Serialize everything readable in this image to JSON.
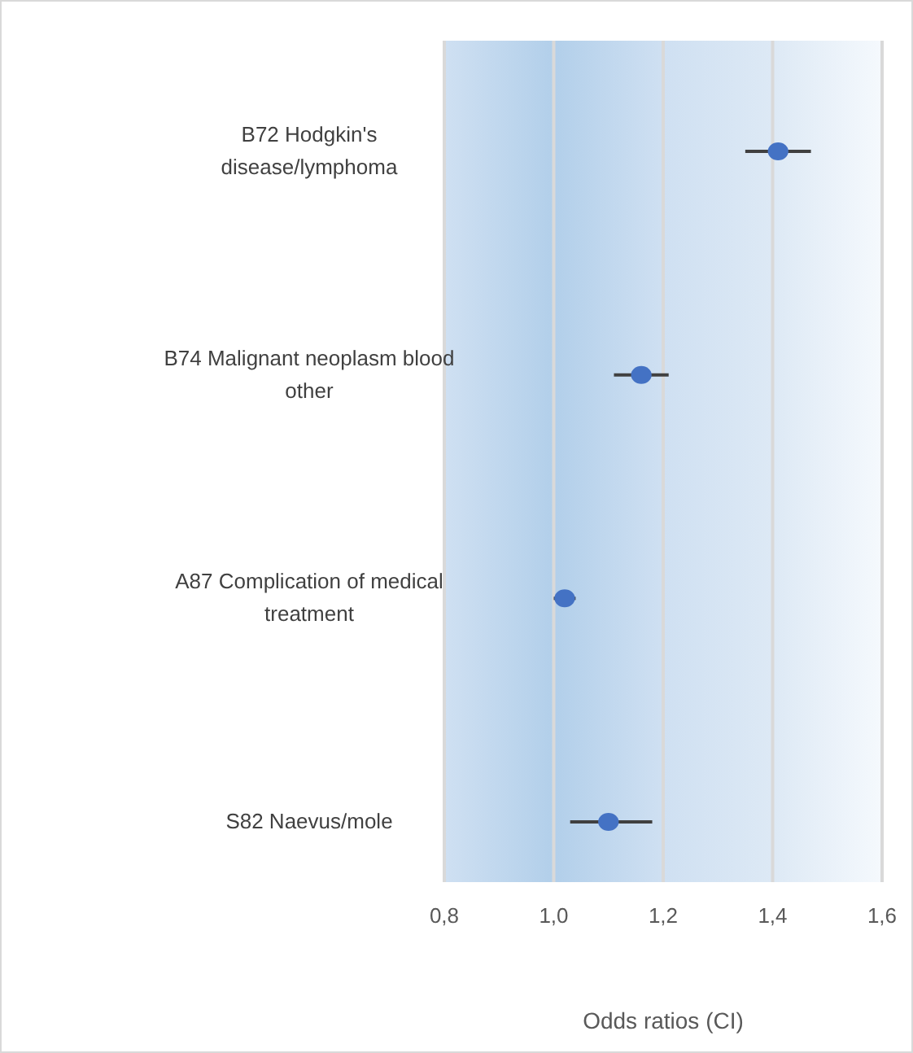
{
  "chart_data": {
    "type": "scatter",
    "orientation": "horizontal",
    "xlabel": "Odds ratios (CI)",
    "categories": [
      "B72 Hodgkin's disease/lymphoma",
      "B74 Malignant neoplasm blood other",
      "A87 Complication of medical treatment",
      "S82 Naevus/mole"
    ],
    "values": [
      1.41,
      1.16,
      1.02,
      1.1
    ],
    "errors": [
      [
        1.35,
        1.47
      ],
      [
        1.11,
        1.21
      ],
      [
        1.0,
        1.04
      ],
      [
        1.03,
        1.18
      ]
    ],
    "color": "#4472c4",
    "marker": "circle",
    "xlim": [
      0.8,
      1.6
    ],
    "xticks": [
      {
        "value": 0.8,
        "label": "0,8"
      },
      {
        "value": 1.0,
        "label": "1,0"
      },
      {
        "value": 1.2,
        "label": "1,2"
      },
      {
        "value": 1.4,
        "label": "1,4"
      },
      {
        "value": 1.6,
        "label": "1,6"
      }
    ],
    "grid": "x"
  }
}
